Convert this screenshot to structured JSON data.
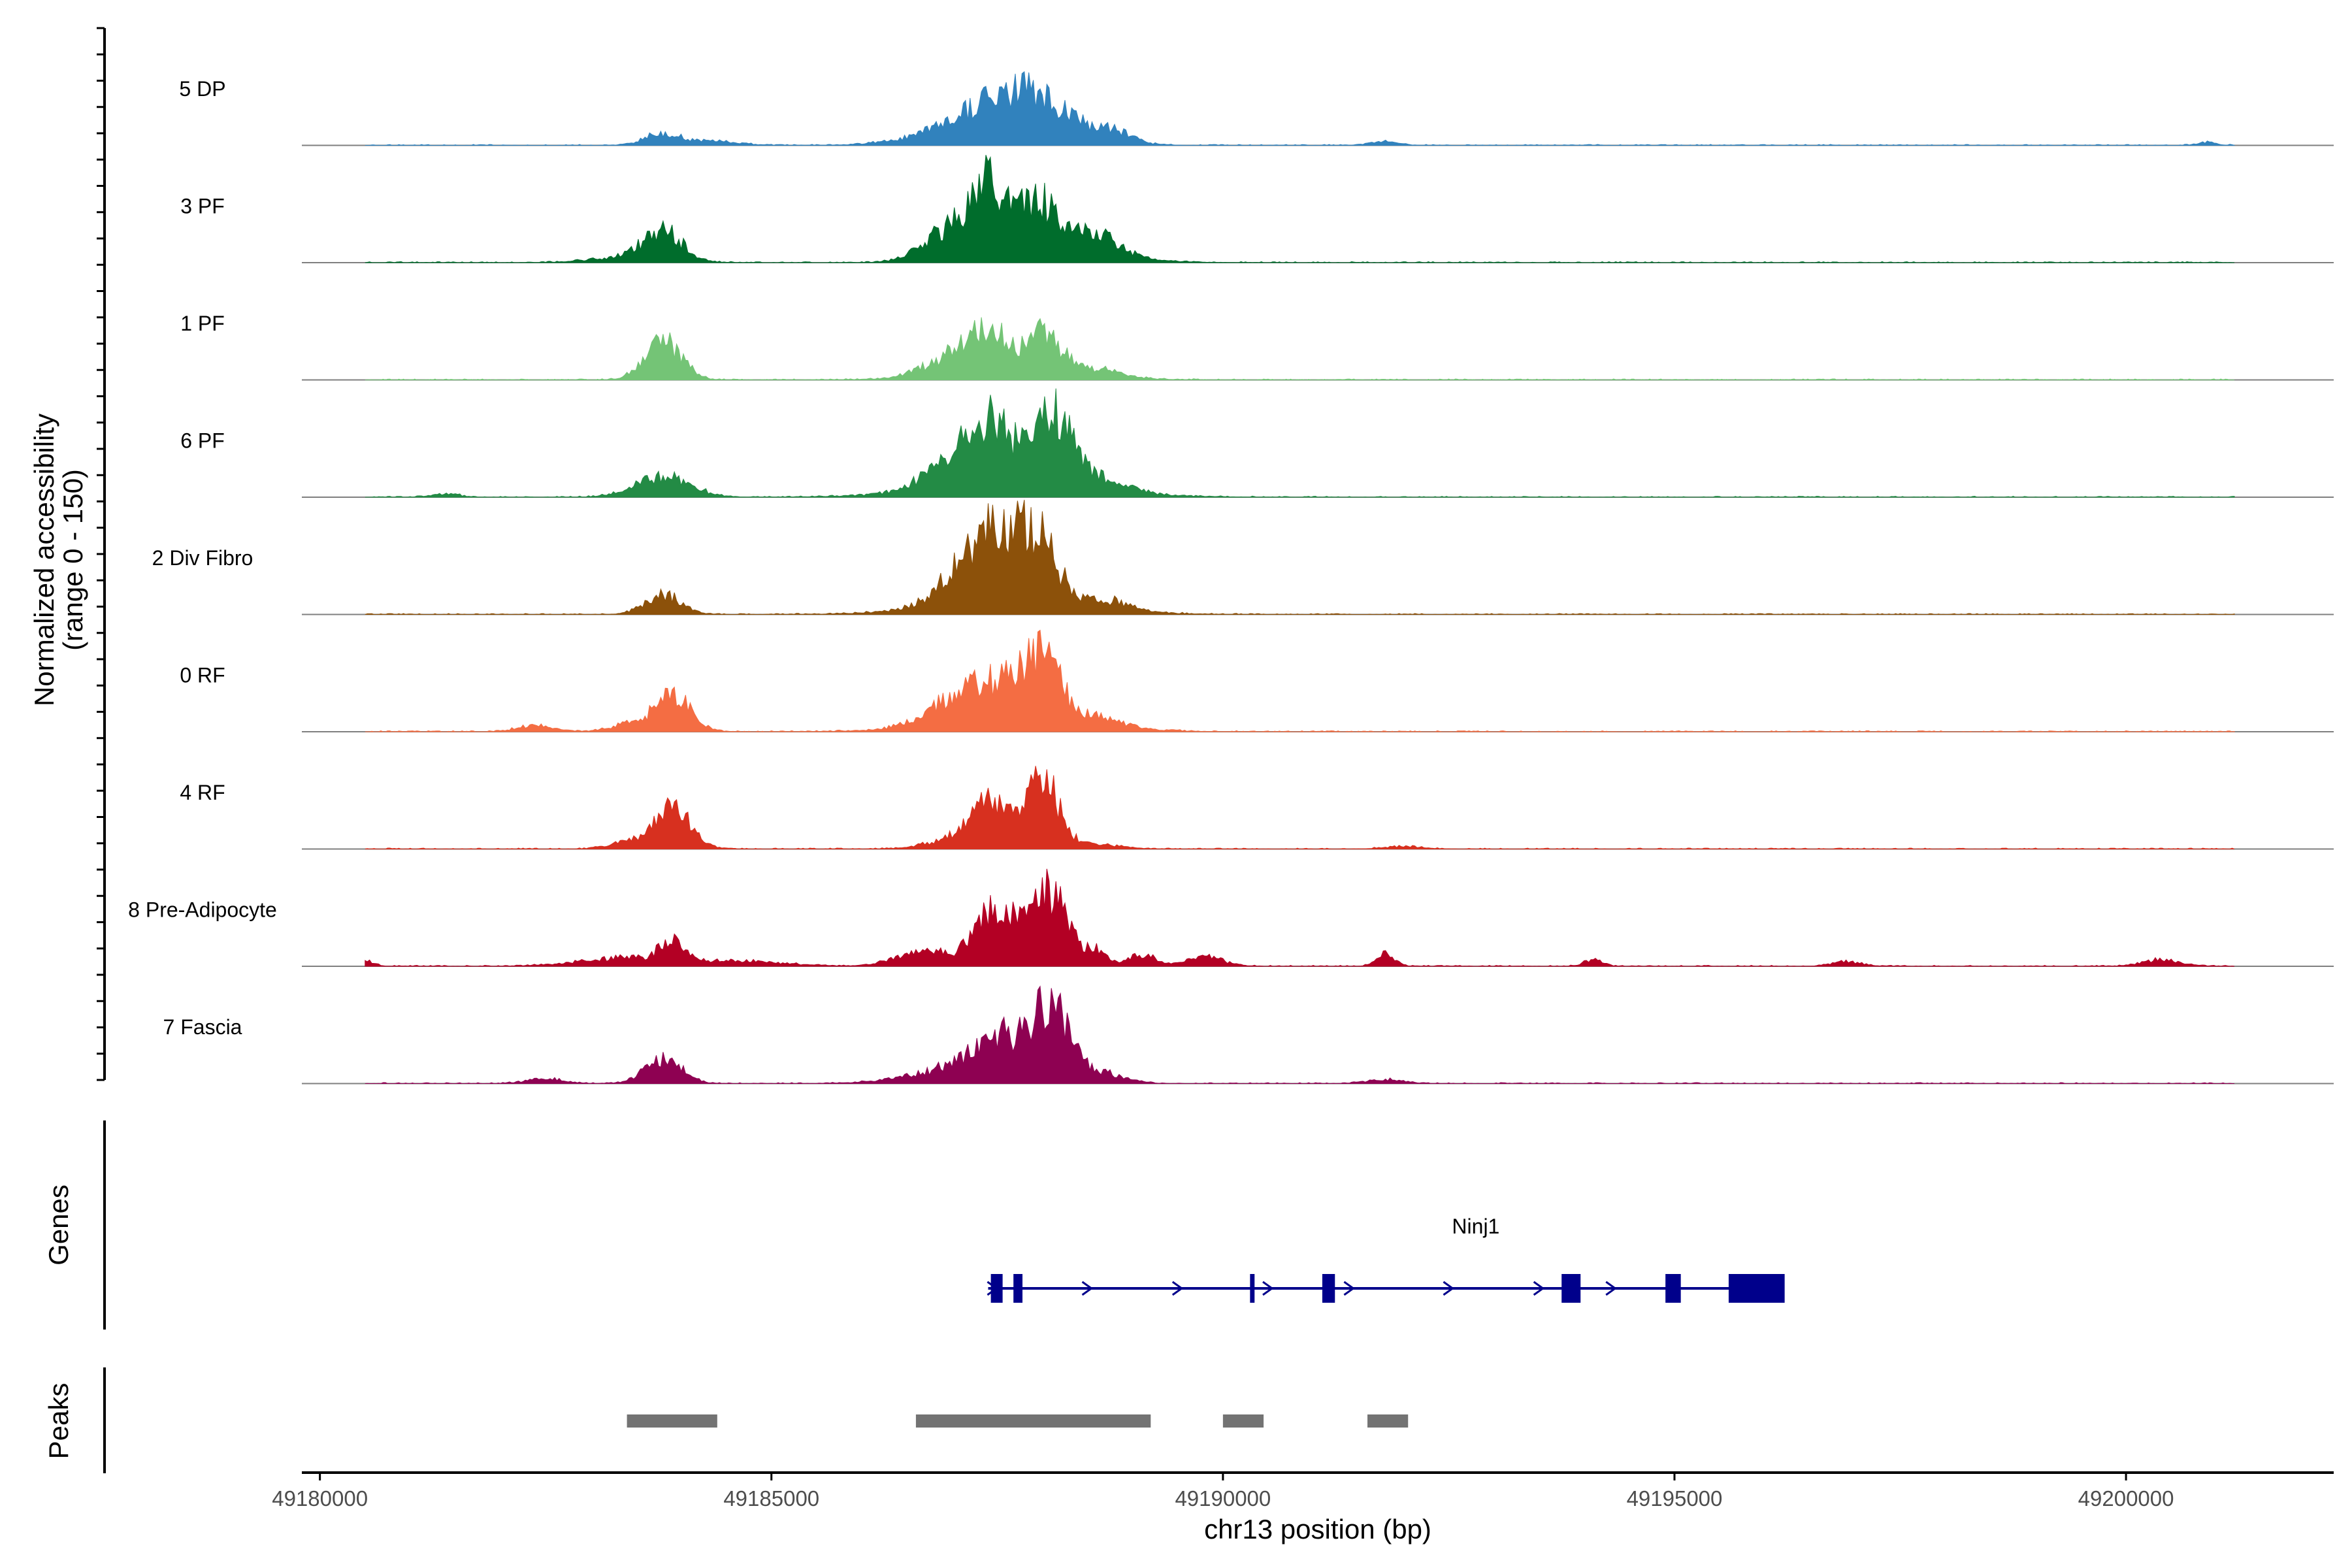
{
  "chart_data": {
    "type": "area",
    "title": "",
    "ylabel_line1": "Normalized accessibility",
    "ylabel_line2": "(range 0 - 150)",
    "xlabel": "chr13 position (bp)",
    "ylim": [
      0,
      150
    ],
    "xlim": [
      49179800,
      49202300
    ],
    "x_ticks": [
      49180000,
      49185000,
      49190000,
      49195000,
      49200000
    ],
    "x_tick_labels": [
      "49180000",
      "49185000",
      "49190000",
      "49195000",
      "49200000"
    ],
    "series": [
      {
        "name": "5 DP",
        "color": "#3182bd",
        "peaks": [
          [
            49183800,
            200,
            15
          ],
          [
            49184400,
            250,
            5
          ],
          [
            49187100,
            500,
            20
          ],
          [
            49187400,
            300,
            30
          ],
          [
            49187900,
            300,
            42
          ],
          [
            49188300,
            400,
            20
          ],
          [
            49188800,
            200,
            10
          ],
          [
            49191800,
            150,
            5
          ],
          [
            49200900,
            100,
            4
          ]
        ]
      },
      {
        "name": "3 PF",
        "color": "#006d2c",
        "peaks": [
          [
            49183800,
            200,
            35
          ],
          [
            49183500,
            400,
            8
          ],
          [
            49187000,
            300,
            40
          ],
          [
            49187400,
            200,
            60
          ],
          [
            49187700,
            300,
            30
          ],
          [
            49188000,
            200,
            45
          ],
          [
            49188600,
            250,
            25
          ],
          [
            49188300,
            600,
            12
          ]
        ]
      },
      {
        "name": "1 PF",
        "color": "#74c476",
        "peaks": [
          [
            49183800,
            200,
            48
          ],
          [
            49187000,
            300,
            22
          ],
          [
            49187400,
            200,
            45
          ],
          [
            49188000,
            200,
            45
          ],
          [
            49188600,
            250,
            8
          ],
          [
            49187700,
            700,
            12
          ]
        ]
      },
      {
        "name": "6 PF",
        "color": "#238b45",
        "peaks": [
          [
            49183800,
            300,
            25
          ],
          [
            49181400,
            150,
            4
          ],
          [
            49187000,
            300,
            35
          ],
          [
            49187300,
            200,
            50
          ],
          [
            49187600,
            200,
            40
          ],
          [
            49188100,
            200,
            95
          ],
          [
            49188600,
            300,
            15
          ],
          [
            49187700,
            900,
            15
          ]
        ]
      },
      {
        "name": "2 Div Fibro",
        "color": "#8c510a",
        "peaks": [
          [
            49183800,
            200,
            25
          ],
          [
            49187200,
            300,
            50
          ],
          [
            49187500,
            200,
            45
          ],
          [
            49187800,
            200,
            40
          ],
          [
            49188000,
            200,
            52
          ],
          [
            49188700,
            250,
            10
          ],
          [
            49187700,
            800,
            18
          ]
        ]
      },
      {
        "name": "0 RF",
        "color": "#f46d43",
        "peaks": [
          [
            49182400,
            200,
            8
          ],
          [
            49183900,
            200,
            45
          ],
          [
            49183400,
            200,
            8
          ],
          [
            49187000,
            300,
            28
          ],
          [
            49187500,
            250,
            40
          ],
          [
            49188000,
            200,
            75
          ],
          [
            49188600,
            250,
            12
          ],
          [
            49187700,
            800,
            15
          ]
        ]
      },
      {
        "name": "4 RF",
        "color": "#d7301f",
        "peaks": [
          [
            49183900,
            200,
            50
          ],
          [
            49183400,
            200,
            8
          ],
          [
            49187000,
            300,
            10
          ],
          [
            49187400,
            200,
            60
          ],
          [
            49188000,
            180,
            85
          ],
          [
            49188600,
            250,
            6
          ],
          [
            49192000,
            200,
            3
          ]
        ]
      },
      {
        "name": "8 Pre-Adipocyte",
        "color": "#b30024",
        "peaks": [
          [
            49180500,
            100,
            6
          ],
          [
            49183400,
            500,
            10
          ],
          [
            49183900,
            120,
            28
          ],
          [
            49184600,
            500,
            6
          ],
          [
            49186700,
            300,
            18
          ],
          [
            49187400,
            200,
            45
          ],
          [
            49187700,
            250,
            40
          ],
          [
            49188100,
            200,
            80
          ],
          [
            49188600,
            120,
            18
          ],
          [
            49189100,
            150,
            15
          ],
          [
            49189800,
            200,
            12
          ],
          [
            49191800,
            100,
            15
          ],
          [
            49194100,
            100,
            8
          ],
          [
            49196900,
            150,
            6
          ],
          [
            49200400,
            200,
            8
          ]
        ]
      },
      {
        "name": "7 Fascia",
        "color": "#8e0152",
        "peaks": [
          [
            49183800,
            200,
            30
          ],
          [
            49182500,
            200,
            6
          ],
          [
            49187000,
            500,
            15
          ],
          [
            49187400,
            300,
            30
          ],
          [
            49187700,
            250,
            30
          ],
          [
            49188100,
            180,
            82
          ],
          [
            49188500,
            300,
            18
          ],
          [
            49191800,
            200,
            5
          ]
        ]
      }
    ]
  },
  "genes": {
    "track_label": "Genes",
    "gene_name": "Ninj1",
    "color": "#00008b",
    "line": [
      49187400,
      49196200
    ],
    "exons": [
      [
        49187430,
        49187560
      ],
      [
        49187680,
        49187780
      ],
      [
        49190300,
        49190350
      ],
      [
        49191100,
        49191240
      ],
      [
        49193750,
        49193960
      ],
      [
        49194900,
        49195070
      ],
      [
        49195600,
        49196220
      ]
    ],
    "arrow_positions": [
      49187450,
      49188500,
      49189500,
      49190500,
      49191400,
      49192500,
      49193500,
      49194300
    ]
  },
  "peaks_track": {
    "track_label": "Peaks",
    "color": "#737373",
    "regions": [
      [
        49183400,
        49184400
      ],
      [
        49186600,
        49189200
      ],
      [
        49190000,
        49190450
      ],
      [
        49191600,
        49192050
      ]
    ]
  }
}
